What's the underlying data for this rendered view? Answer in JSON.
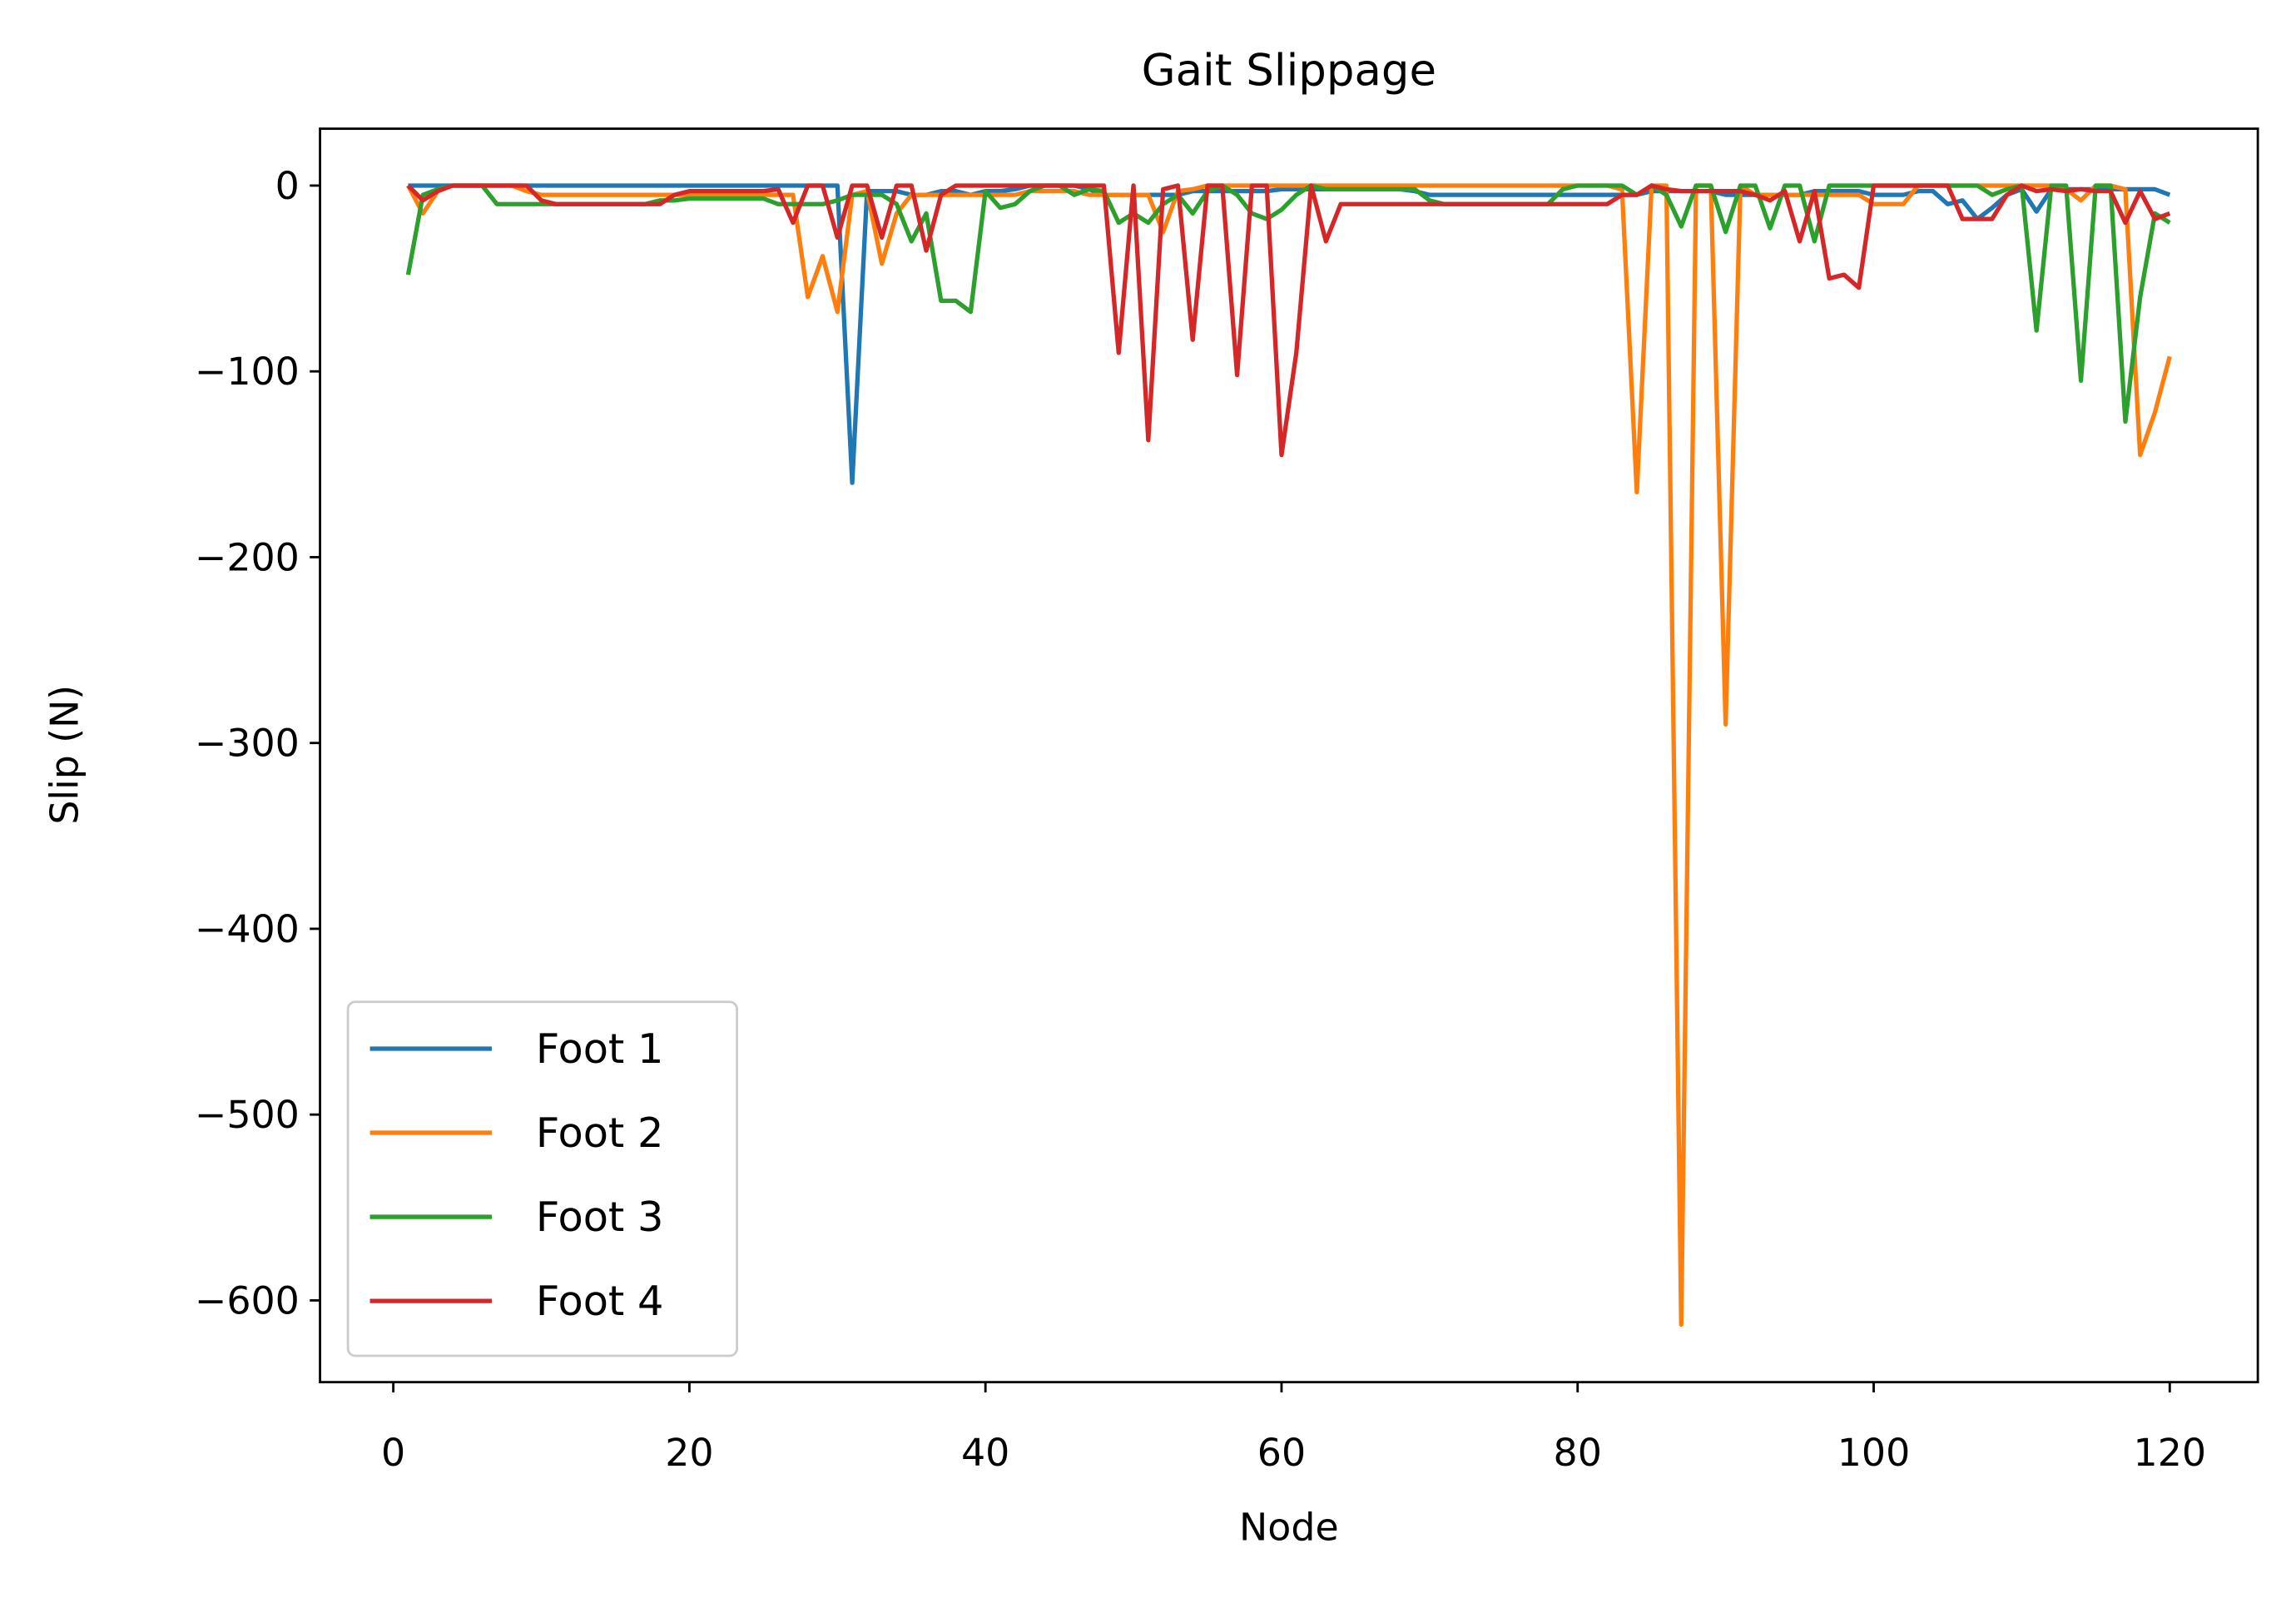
{
  "chart_data": {
    "type": "line",
    "title": "Gait Slippage",
    "x_label": "Node",
    "y_label": "Slip (N)",
    "x": [
      1,
      2,
      3,
      4,
      5,
      6,
      7,
      8,
      9,
      10,
      11,
      12,
      13,
      14,
      15,
      16,
      17,
      18,
      19,
      20,
      21,
      22,
      23,
      24,
      25,
      26,
      27,
      28,
      29,
      30,
      31,
      32,
      33,
      34,
      35,
      36,
      37,
      38,
      39,
      40,
      41,
      42,
      43,
      44,
      45,
      46,
      47,
      48,
      49,
      50,
      51,
      52,
      53,
      54,
      55,
      56,
      57,
      58,
      59,
      60,
      61,
      62,
      63,
      64,
      65,
      66,
      67,
      68,
      69,
      70,
      71,
      72,
      73,
      74,
      75,
      76,
      77,
      78,
      79,
      80,
      81,
      82,
      83,
      84,
      85,
      86,
      87,
      88,
      89,
      90,
      91,
      92,
      93,
      94,
      95,
      96,
      97,
      98,
      99,
      100,
      101,
      102,
      103,
      104,
      105,
      106,
      107,
      108,
      109,
      110,
      111,
      112,
      113,
      114,
      115,
      116,
      117,
      118,
      119,
      120
    ],
    "series": [
      {
        "name": "Foot 1",
        "color": "#1f77b4",
        "values": [
          0,
          0,
          0,
          0,
          0,
          0,
          0,
          0,
          0,
          0,
          0,
          0,
          0,
          0,
          0,
          0,
          0,
          0,
          0,
          0,
          0,
          0,
          0,
          0,
          0,
          0,
          0,
          0,
          0,
          0,
          -160,
          -3,
          -3,
          -3,
          -5,
          -5,
          -3,
          -3,
          -5,
          -3,
          -3,
          -2,
          0,
          0,
          0,
          0,
          -2,
          -5,
          -5,
          -5,
          -5,
          -5,
          -5,
          -3,
          -3,
          -3,
          -3,
          -3,
          -3,
          -2,
          -2,
          -2,
          -2,
          -2,
          -2,
          -2,
          -2,
          -2,
          -3,
          -5,
          -5,
          -5,
          -5,
          -5,
          -5,
          -5,
          -5,
          -5,
          -5,
          -5,
          -5,
          -5,
          -5,
          -5,
          -3,
          -3,
          -3,
          -3,
          -3,
          -5,
          -5,
          -5,
          -5,
          -5,
          -5,
          -3,
          -3,
          -3,
          -3,
          -5,
          -5,
          -5,
          -3,
          -3,
          -10,
          -8,
          -18,
          -12,
          -5,
          -2,
          -14,
          -2,
          -2,
          -2,
          -2,
          -2,
          -2,
          -2,
          -2,
          -5
        ]
      },
      {
        "name": "Foot 2",
        "color": "#ff7f0e",
        "values": [
          0,
          -15,
          -3,
          0,
          0,
          0,
          0,
          0,
          -3,
          -5,
          -5,
          -5,
          -5,
          -5,
          -5,
          -5,
          -5,
          -5,
          -5,
          -5,
          -5,
          -5,
          -5,
          -5,
          -5,
          -5,
          -5,
          -60,
          -38,
          -68,
          -5,
          -3,
          -42,
          -15,
          -5,
          -5,
          -5,
          -5,
          -5,
          -5,
          -5,
          -5,
          -3,
          -3,
          -3,
          -3,
          -5,
          -5,
          -5,
          -5,
          -5,
          -25,
          -3,
          -2,
          0,
          0,
          0,
          0,
          0,
          0,
          0,
          0,
          0,
          0,
          0,
          0,
          0,
          0,
          0,
          0,
          0,
          0,
          0,
          0,
          0,
          0,
          0,
          0,
          0,
          0,
          0,
          0,
          -2,
          -165,
          0,
          0,
          -613,
          0,
          0,
          -290,
          0,
          -5,
          -5,
          -5,
          -5,
          -5,
          -5,
          -5,
          -5,
          -10,
          -10,
          -10,
          0,
          0,
          0,
          0,
          0,
          0,
          0,
          0,
          0,
          0,
          -2,
          -8,
          0,
          0,
          -2,
          -145,
          -122,
          -92
        ]
      },
      {
        "name": "Foot 3",
        "color": "#2ca02c",
        "values": [
          -48,
          -5,
          -2,
          0,
          0,
          0,
          -10,
          -10,
          -10,
          -10,
          -10,
          -10,
          -10,
          -10,
          -10,
          -10,
          -10,
          -8,
          -8,
          -7,
          -7,
          -7,
          -7,
          -7,
          -7,
          -10,
          -10,
          -10,
          -10,
          -8,
          -5,
          -5,
          -5,
          -10,
          -30,
          -15,
          -62,
          -62,
          -68,
          -3,
          -12,
          -10,
          -3,
          0,
          0,
          -5,
          -2,
          -3,
          -20,
          -15,
          -20,
          -10,
          -5,
          -15,
          -3,
          0,
          -5,
          -15,
          -18,
          -13,
          -5,
          0,
          -2,
          -2,
          -2,
          -2,
          -2,
          -2,
          -2,
          -8,
          -10,
          -10,
          -10,
          -10,
          -10,
          -10,
          -10,
          -10,
          -2,
          0,
          0,
          0,
          0,
          -5,
          0,
          -5,
          -22,
          0,
          0,
          -25,
          0,
          0,
          -23,
          0,
          0,
          -30,
          0,
          0,
          0,
          0,
          0,
          0,
          0,
          0,
          0,
          0,
          0,
          -5,
          -2,
          0,
          -78,
          0,
          0,
          -105,
          0,
          0,
          -127,
          -60,
          -15,
          -20
        ]
      },
      {
        "name": "Foot 4",
        "color": "#d62728",
        "values": [
          0,
          -8,
          -3,
          0,
          0,
          0,
          0,
          0,
          0,
          -8,
          -10,
          -10,
          -10,
          -10,
          -10,
          -10,
          -10,
          -10,
          -5,
          -3,
          -3,
          -3,
          -3,
          -3,
          -3,
          -2,
          -20,
          0,
          0,
          -28,
          0,
          0,
          -28,
          0,
          0,
          -35,
          -5,
          0,
          0,
          0,
          0,
          0,
          0,
          0,
          0,
          0,
          0,
          0,
          -90,
          0,
          -137,
          -2,
          0,
          -83,
          0,
          0,
          -102,
          0,
          0,
          -145,
          -90,
          0,
          -30,
          -10,
          -10,
          -10,
          -10,
          -10,
          -10,
          -10,
          -10,
          -10,
          -10,
          -10,
          -10,
          -10,
          -10,
          -10,
          -10,
          -10,
          -10,
          -10,
          -5,
          -5,
          0,
          -2,
          -3,
          -3,
          -3,
          -3,
          -3,
          -5,
          -8,
          -3,
          -30,
          -3,
          -50,
          -48,
          -55,
          0,
          0,
          0,
          0,
          0,
          0,
          -18,
          -18,
          -18,
          -5,
          0,
          -3,
          -2,
          -3,
          -2,
          -3,
          -3,
          -20,
          -3,
          -18,
          -15
        ]
      }
    ],
    "xlim": [
      -4.95,
      125.95
    ],
    "ylim": [
      -644,
      30.6
    ],
    "xticks": [
      0,
      20,
      40,
      60,
      80,
      100,
      120
    ],
    "yticks": [
      0,
      {
        "value": -100,
        "label": "−100"
      },
      {
        "value": -200,
        "label": "−200"
      },
      {
        "value": -300,
        "label": "−300"
      },
      {
        "value": -400,
        "label": "−400"
      },
      {
        "value": -500,
        "label": "−500"
      },
      {
        "value": -600,
        "label": "−600"
      }
    ],
    "grid": false,
    "legend": "lower left"
  }
}
